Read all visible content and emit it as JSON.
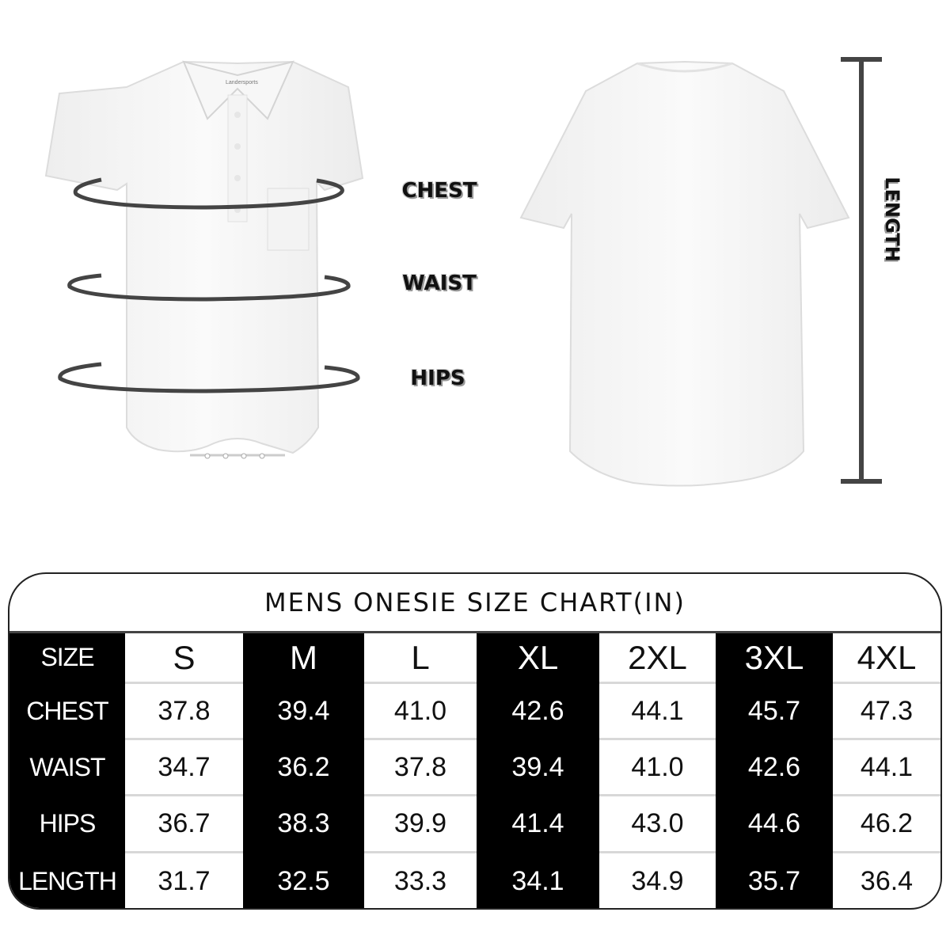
{
  "measure_labels": {
    "chest": "CHEST",
    "waist": "WAIST",
    "hips": "HIPS",
    "length": "LENGTH"
  },
  "shirt_tag": "Landersports",
  "table": {
    "title": "MENS ONESIE SIZE CHART(IN)",
    "corner_label": "SIZE",
    "sizes": [
      "S",
      "M",
      "L",
      "XL",
      "2XL",
      "3XL",
      "4XL"
    ],
    "rows": [
      {
        "label": "CHEST",
        "values": [
          "37.8",
          "39.4",
          "41.0",
          "42.6",
          "44.1",
          "45.7",
          "47.3"
        ]
      },
      {
        "label": "WAIST",
        "values": [
          "34.7",
          "36.2",
          "37.8",
          "39.4",
          "41.0",
          "42.6",
          "44.1"
        ]
      },
      {
        "label": "HIPS",
        "values": [
          "36.7",
          "38.3",
          "39.9",
          "41.4",
          "43.0",
          "44.6",
          "46.2"
        ]
      },
      {
        "label": "LENGTH",
        "values": [
          "31.7",
          "32.5",
          "33.3",
          "34.1",
          "34.9",
          "35.7",
          "36.4"
        ]
      }
    ]
  },
  "colors": {
    "dark_column": "#000000",
    "light_column": "#ffffff",
    "row_divider": "#d8d8d8"
  }
}
